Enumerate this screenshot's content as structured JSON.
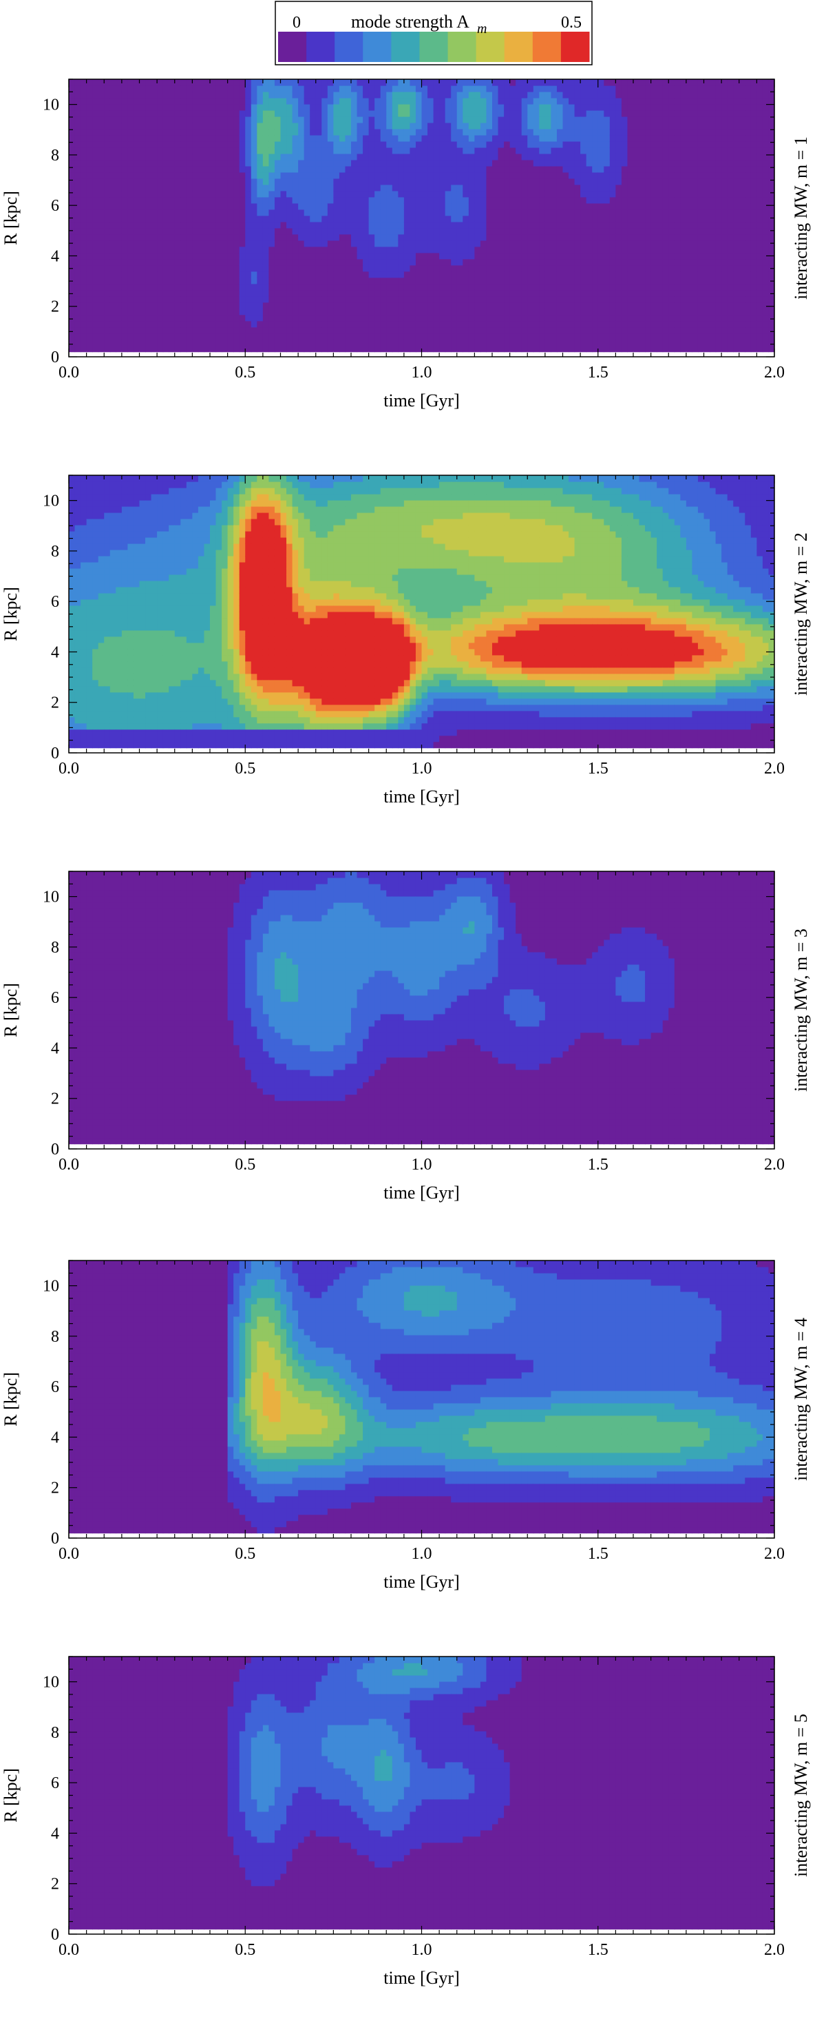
{
  "colorbar": {
    "label": "mode strength A",
    "label_sub": "m",
    "min_label": "0",
    "max_label": "0.5",
    "range": [
      0,
      0.5
    ],
    "levels": 11,
    "colors": [
      "#6a1f9a",
      "#4a35c8",
      "#3f64d8",
      "#3f8ad8",
      "#3aa7b6",
      "#5cba8a",
      "#93c761",
      "#c4c84a",
      "#eab040",
      "#f07a35",
      "#e02828"
    ]
  },
  "panel_bg": "#5a28b4",
  "chart_data": [
    {
      "type": "heatmap",
      "xlabel": "time [Gyr]",
      "ylabel": "R [kpc]",
      "side_label": "interacting MW,  m = 1",
      "xlim": [
        0.0,
        2.0
      ],
      "ylim": [
        0,
        11
      ],
      "xgrid": "off",
      "xticks": [
        "0.0",
        "0.5",
        "1.0",
        "1.5",
        "2.0"
      ],
      "yticks": [
        "0",
        "2",
        "4",
        "6",
        "8",
        "10"
      ],
      "blobs": [
        {
          "t": 0.55,
          "R": 8.5,
          "st": 0.03,
          "sR": 2.0,
          "a": 0.2
        },
        {
          "t": 0.62,
          "R": 9.2,
          "st": 0.04,
          "sR": 1.5,
          "a": 0.18
        },
        {
          "t": 0.78,
          "R": 9.5,
          "st": 0.04,
          "sR": 1.2,
          "a": 0.2
        },
        {
          "t": 0.95,
          "R": 9.8,
          "st": 0.05,
          "sR": 1.0,
          "a": 0.22
        },
        {
          "t": 1.15,
          "R": 9.8,
          "st": 0.05,
          "sR": 1.0,
          "a": 0.2
        },
        {
          "t": 1.35,
          "R": 9.5,
          "st": 0.05,
          "sR": 1.0,
          "a": 0.18
        },
        {
          "t": 0.7,
          "R": 6.5,
          "st": 0.05,
          "sR": 1.3,
          "a": 0.1
        },
        {
          "t": 0.9,
          "R": 5.5,
          "st": 0.06,
          "sR": 1.5,
          "a": 0.1
        },
        {
          "t": 1.1,
          "R": 6.0,
          "st": 0.06,
          "sR": 1.5,
          "a": 0.08
        },
        {
          "t": 1.5,
          "R": 8.5,
          "st": 0.05,
          "sR": 1.5,
          "a": 0.1
        },
        {
          "t": 0.52,
          "R": 3.0,
          "st": 0.03,
          "sR": 1.2,
          "a": 0.07
        }
      ]
    },
    {
      "type": "heatmap",
      "xlabel": "time [Gyr]",
      "ylabel": "R [kpc]",
      "side_label": "interacting MW,  m = 2",
      "xlim": [
        0.0,
        2.0
      ],
      "ylim": [
        0,
        11
      ],
      "xticks": [
        "0.0",
        "0.5",
        "1.0",
        "1.5",
        "2.0"
      ],
      "yticks": [
        "0",
        "2",
        "4",
        "6",
        "8",
        "10"
      ],
      "blobs": [
        {
          "t": 0.2,
          "R": 3.5,
          "st": 0.4,
          "sR": 3.5,
          "a": 0.22
        },
        {
          "t": 0.55,
          "R": 6.5,
          "st": 0.06,
          "sR": 3.0,
          "a": 0.45
        },
        {
          "t": 0.75,
          "R": 3.5,
          "st": 0.1,
          "sR": 2.0,
          "a": 0.45
        },
        {
          "t": 0.9,
          "R": 3.5,
          "st": 0.06,
          "sR": 1.5,
          "a": 0.35
        },
        {
          "t": 1.3,
          "R": 4.0,
          "st": 0.3,
          "sR": 1.2,
          "a": 0.35
        },
        {
          "t": 1.8,
          "R": 4.0,
          "st": 0.3,
          "sR": 1.3,
          "a": 0.3
        },
        {
          "t": 1.0,
          "R": 9.0,
          "st": 0.4,
          "sR": 2.0,
          "a": 0.25
        },
        {
          "t": 1.5,
          "R": 7.5,
          "st": 0.3,
          "sR": 2.5,
          "a": 0.18
        }
      ]
    },
    {
      "type": "heatmap",
      "xlabel": "time [Gyr]",
      "ylabel": "R [kpc]",
      "side_label": "interacting MW,  m = 3",
      "xlim": [
        0.0,
        2.0
      ],
      "ylim": [
        0,
        11
      ],
      "xticks": [
        "0.0",
        "0.5",
        "1.0",
        "1.5",
        "2.0"
      ],
      "yticks": [
        "0",
        "2",
        "4",
        "6",
        "8",
        "10"
      ],
      "blobs": [
        {
          "t": 0.6,
          "R": 7.0,
          "st": 0.08,
          "sR": 2.5,
          "a": 0.16
        },
        {
          "t": 0.8,
          "R": 8.5,
          "st": 0.08,
          "sR": 2.0,
          "a": 0.14
        },
        {
          "t": 1.0,
          "R": 7.5,
          "st": 0.08,
          "sR": 2.0,
          "a": 0.14
        },
        {
          "t": 1.15,
          "R": 9.0,
          "st": 0.06,
          "sR": 1.5,
          "a": 0.14
        },
        {
          "t": 0.75,
          "R": 4.5,
          "st": 0.08,
          "sR": 1.5,
          "a": 0.1
        },
        {
          "t": 1.3,
          "R": 5.5,
          "st": 0.1,
          "sR": 1.5,
          "a": 0.08
        },
        {
          "t": 1.6,
          "R": 6.5,
          "st": 0.08,
          "sR": 1.5,
          "a": 0.08
        }
      ]
    },
    {
      "type": "heatmap",
      "xlabel": "time [Gyr]",
      "ylabel": "R [kpc]",
      "side_label": "interacting MW,   m = 4",
      "xlim": [
        0.0,
        2.0
      ],
      "ylim": [
        0,
        11
      ],
      "xticks": [
        "0.0",
        "0.5",
        "1.0",
        "1.5",
        "2.0"
      ],
      "yticks": [
        "0",
        "2",
        "4",
        "6",
        "8",
        "10"
      ],
      "blobs": [
        {
          "t": 0.55,
          "R": 7.0,
          "st": 0.06,
          "sR": 3.0,
          "a": 0.28
        },
        {
          "t": 0.7,
          "R": 5.0,
          "st": 0.1,
          "sR": 1.8,
          "a": 0.24
        },
        {
          "t": 1.2,
          "R": 4.0,
          "st": 0.35,
          "sR": 1.2,
          "a": 0.2
        },
        {
          "t": 1.8,
          "R": 4.0,
          "st": 0.3,
          "sR": 1.3,
          "a": 0.16
        },
        {
          "t": 1.0,
          "R": 9.5,
          "st": 0.2,
          "sR": 1.5,
          "a": 0.16
        },
        {
          "t": 0.3,
          "R": 4.0,
          "st": 0.15,
          "sR": 1.2,
          "a": 0.08
        },
        {
          "t": 1.6,
          "R": 8.5,
          "st": 0.3,
          "sR": 2.0,
          "a": 0.1
        }
      ]
    },
    {
      "type": "heatmap",
      "xlabel": "time [Gyr]",
      "ylabel": "R [kpc]",
      "side_label": "interacting MW,  m = 5",
      "xlim": [
        0.0,
        2.0
      ],
      "ylim": [
        0,
        11
      ],
      "xticks": [
        "0.0",
        "0.5",
        "1.0",
        "1.5",
        "2.0"
      ],
      "yticks": [
        "0",
        "2",
        "4",
        "6",
        "8",
        "10"
      ],
      "blobs": [
        {
          "t": 0.55,
          "R": 6.5,
          "st": 0.06,
          "sR": 2.5,
          "a": 0.14
        },
        {
          "t": 0.75,
          "R": 7.5,
          "st": 0.08,
          "sR": 2.0,
          "a": 0.12
        },
        {
          "t": 0.9,
          "R": 6.5,
          "st": 0.06,
          "sR": 2.0,
          "a": 0.14
        },
        {
          "t": 1.0,
          "R": 10.5,
          "st": 0.15,
          "sR": 0.8,
          "a": 0.16
        },
        {
          "t": 1.1,
          "R": 6.0,
          "st": 0.1,
          "sR": 1.5,
          "a": 0.08
        }
      ]
    }
  ]
}
